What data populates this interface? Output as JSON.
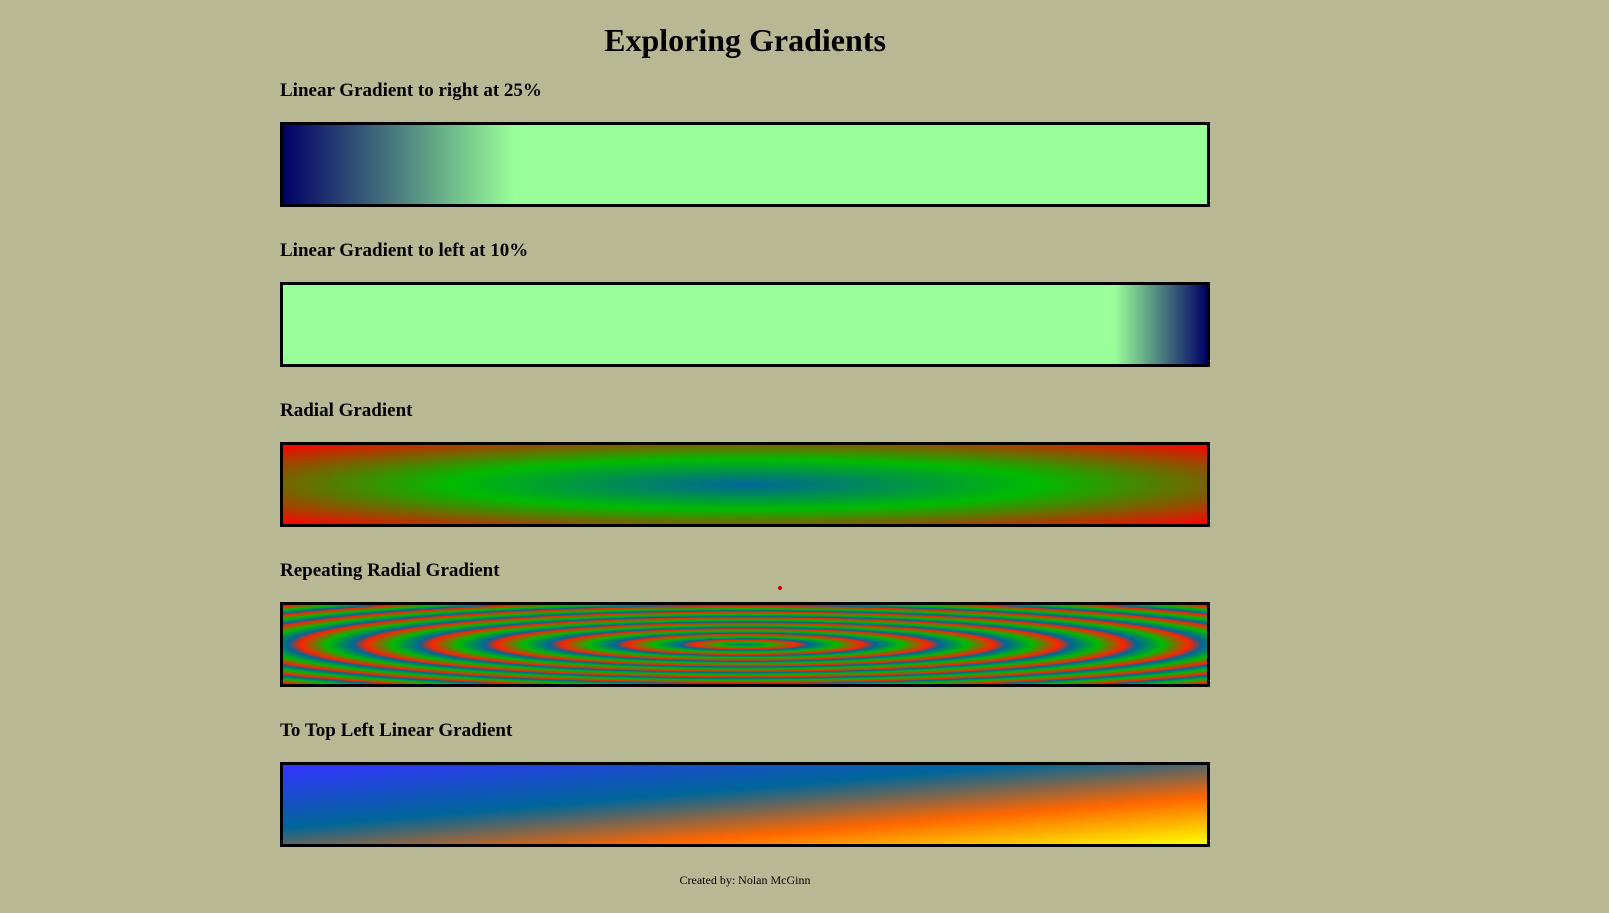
{
  "page": {
    "title": "Exploring Gradients",
    "footer": "Created by: Nolan McGinn"
  },
  "sections": [
    {
      "heading": "Linear Gradient to right at 25%",
      "gradient": "linear",
      "direction": "to right",
      "colors": [
        "#000066",
        "#99ff99"
      ],
      "stop_percent": 25
    },
    {
      "heading": "Linear Gradient to left at 10%",
      "gradient": "linear",
      "direction": "to left",
      "colors": [
        "#000066",
        "#99ff99"
      ],
      "stop_percent": 10
    },
    {
      "heading": "Radial Gradient",
      "gradient": "radial",
      "colors": [
        "#006699",
        "#00bb00",
        "#ff0000"
      ]
    },
    {
      "heading": "Repeating Radial Gradient",
      "gradient": "repeating-radial",
      "colors": [
        "#006699",
        "#00bb00",
        "#ff2200"
      ]
    },
    {
      "heading": "To Top Left Linear Gradient",
      "gradient": "linear",
      "direction": "to top left",
      "colors": [
        "#ffff00",
        "#ff6600",
        "#006699",
        "#3333ff"
      ]
    }
  ],
  "colors": {
    "background": "#b8b894",
    "border": "#000000"
  }
}
